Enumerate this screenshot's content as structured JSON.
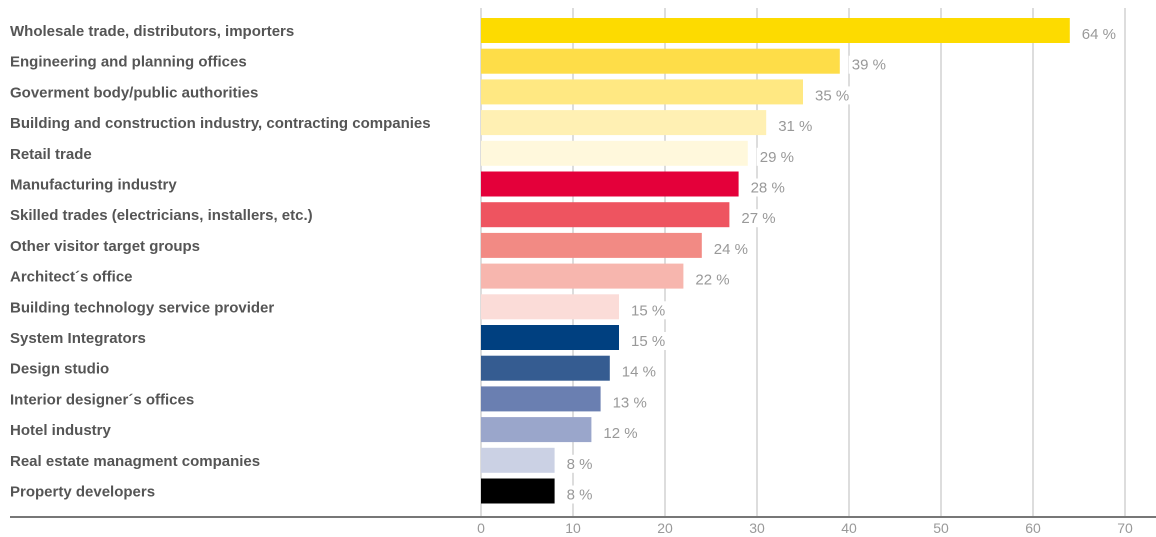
{
  "chart_data": {
    "type": "bar",
    "orientation": "horizontal",
    "categories": [
      "Wholesale trade, distributors, importers",
      "Engineering and planning offices",
      "Goverment body/public authorities",
      "Building and construction industry, contracting companies",
      "Retail trade",
      "Manufacturing industry",
      "Skilled trades (electricians, installers, etc.)",
      "Other visitor target groups",
      "Architect´s office",
      "Building technology service provider",
      "System Integrators",
      "Design studio",
      "Interior designer´s offices",
      "Hotel industry",
      "Real estate managment companies",
      "Property developers"
    ],
    "values": [
      64,
      39,
      35,
      31,
      29,
      28,
      27,
      24,
      22,
      15,
      15,
      14,
      13,
      12,
      8,
      8
    ],
    "value_labels": [
      "64 %",
      "39 %",
      "35 %",
      "31 %",
      "29 %",
      "28 %",
      "27 %",
      "24 %",
      "22 %",
      "15 %",
      "15 %",
      "14 %",
      "13 %",
      "12 %",
      "8 %",
      "8 %"
    ],
    "colors": [
      "#fddb00",
      "#fedd48",
      "#ffe882",
      "#fff0b3",
      "#fff8dc",
      "#e4003a",
      "#ee5460",
      "#f28a84",
      "#f7b6ae",
      "#fbdcd8",
      "#004080",
      "#355c91",
      "#6a7fb1",
      "#9aa6cb",
      "#cbd1e4",
      "#000000"
    ],
    "xlim": [
      0,
      70
    ],
    "xticks": [
      "0",
      "10",
      "20",
      "30",
      "40",
      "50",
      "60",
      "70"
    ],
    "grid": true,
    "legend": "none"
  }
}
